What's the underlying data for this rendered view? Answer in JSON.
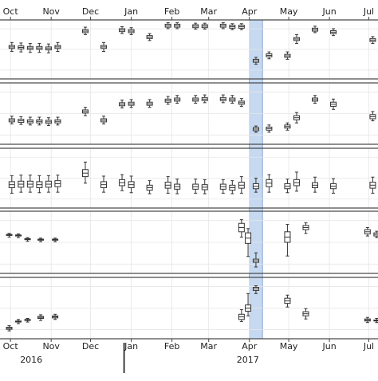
{
  "chart_data": {
    "type": "box",
    "x_axis": {
      "month_ticks": [
        "Oct",
        "Nov",
        "Dec",
        "Jan",
        "Feb",
        "Mar",
        "Apr",
        "May",
        "Jun",
        "Jul"
      ],
      "month_tick_dates": [
        "2016-10-01",
        "2016-11-01",
        "2016-12-01",
        "2017-01-01",
        "2017-02-01",
        "2017-03-01",
        "2017-04-01",
        "2017-05-01",
        "2017-06-01",
        "2017-07-01"
      ],
      "year_labels": [
        "2016",
        "2017"
      ],
      "year_label_dates": [
        "2016-11-01",
        "2017-04-15"
      ],
      "year_boundary_date": "2017-01-01",
      "range": [
        "2016-09-23",
        "2017-07-08"
      ]
    },
    "highlight_band": {
      "start": "2017-04-01",
      "end": "2017-04-11",
      "color": "#c6d9f1",
      "edge_color": "#6f94c8"
    },
    "grid": true,
    "colors": {
      "box_stroke": "#333333",
      "box_fill": "#ffffff",
      "panel_border": "#444444",
      "grid": "#e6e6e6"
    },
    "panels": [
      {
        "ylim": [
          0,
          100
        ],
        "boxes": [
          {
            "x": "2016-10-02",
            "whislo": 46,
            "q1": 52,
            "med": 55,
            "q3": 58,
            "whishi": 64
          },
          {
            "x": "2016-10-09",
            "whislo": 45,
            "q1": 51,
            "med": 54,
            "q3": 57,
            "whishi": 63
          },
          {
            "x": "2016-10-16",
            "whislo": 44,
            "q1": 50,
            "med": 53,
            "q3": 56,
            "whishi": 62
          },
          {
            "x": "2016-10-23",
            "whislo": 44,
            "q1": 50,
            "med": 53,
            "q3": 56,
            "whishi": 62
          },
          {
            "x": "2016-10-30",
            "whislo": 43,
            "q1": 49,
            "med": 52,
            "q3": 55,
            "whishi": 61
          },
          {
            "x": "2016-11-06",
            "whislo": 46,
            "q1": 52,
            "med": 55,
            "q3": 58,
            "whishi": 64
          },
          {
            "x": "2016-11-27",
            "whislo": 80,
            "q1": 84,
            "med": 87,
            "q3": 90,
            "whishi": 95
          },
          {
            "x": "2016-12-11",
            "whislo": 46,
            "q1": 52,
            "med": 55,
            "q3": 58,
            "whishi": 64
          },
          {
            "x": "2016-12-25",
            "whislo": 82,
            "q1": 86,
            "med": 89,
            "q3": 92,
            "whishi": 96
          },
          {
            "x": "2017-01-01",
            "whislo": 80,
            "q1": 84,
            "med": 87,
            "q3": 90,
            "whishi": 94
          },
          {
            "x": "2017-01-15",
            "whislo": 68,
            "q1": 72,
            "med": 75,
            "q3": 78,
            "whishi": 82
          },
          {
            "x": "2017-01-29",
            "whislo": 92,
            "q1": 95,
            "med": 98,
            "q3": 101,
            "whishi": 104
          },
          {
            "x": "2017-02-05",
            "whislo": 92,
            "q1": 95,
            "med": 98,
            "q3": 101,
            "whishi": 104
          },
          {
            "x": "2017-02-19",
            "whislo": 91,
            "q1": 94,
            "med": 97,
            "q3": 100,
            "whishi": 103
          },
          {
            "x": "2017-02-26",
            "whislo": 91,
            "q1": 94,
            "med": 97,
            "q3": 100,
            "whishi": 103
          },
          {
            "x": "2017-03-12",
            "whislo": 92,
            "q1": 95,
            "med": 98,
            "q3": 101,
            "whishi": 104
          },
          {
            "x": "2017-03-19",
            "whislo": 90,
            "q1": 93,
            "med": 96,
            "q3": 99,
            "whishi": 102
          },
          {
            "x": "2017-03-26",
            "whislo": 90,
            "q1": 93,
            "med": 96,
            "q3": 99,
            "whishi": 102
          },
          {
            "x": "2017-04-06",
            "whislo": 20,
            "q1": 24,
            "med": 27,
            "q3": 30,
            "whishi": 34
          },
          {
            "x": "2017-04-16",
            "whislo": 31,
            "q1": 35,
            "med": 38,
            "q3": 41,
            "whishi": 45
          },
          {
            "x": "2017-04-30",
            "whislo": 30,
            "q1": 34,
            "med": 37,
            "q3": 40,
            "whishi": 45
          },
          {
            "x": "2017-05-07",
            "whislo": 62,
            "q1": 68,
            "med": 71,
            "q3": 74,
            "whishi": 80
          },
          {
            "x": "2017-05-21",
            "whislo": 84,
            "q1": 87,
            "med": 90,
            "q3": 93,
            "whishi": 97
          },
          {
            "x": "2017-06-04",
            "whislo": 78,
            "q1": 82,
            "med": 85,
            "q3": 88,
            "whishi": 92
          },
          {
            "x": "2017-07-04",
            "whislo": 62,
            "q1": 66,
            "med": 69,
            "q3": 72,
            "whishi": 76
          }
        ]
      },
      {
        "ylim": [
          0,
          100
        ],
        "boxes": [
          {
            "x": "2016-10-02",
            "whislo": 30,
            "q1": 34,
            "med": 37,
            "q3": 40,
            "whishi": 45
          },
          {
            "x": "2016-10-09",
            "whislo": 29,
            "q1": 33,
            "med": 36,
            "q3": 39,
            "whishi": 44
          },
          {
            "x": "2016-10-16",
            "whislo": 28,
            "q1": 32,
            "med": 35,
            "q3": 38,
            "whishi": 43
          },
          {
            "x": "2016-10-23",
            "whislo": 28,
            "q1": 32,
            "med": 35,
            "q3": 38,
            "whishi": 43
          },
          {
            "x": "2016-10-30",
            "whislo": 27,
            "q1": 31,
            "med": 34,
            "q3": 37,
            "whishi": 42
          },
          {
            "x": "2016-11-06",
            "whislo": 28,
            "q1": 32,
            "med": 35,
            "q3": 38,
            "whishi": 43
          },
          {
            "x": "2016-11-27",
            "whislo": 46,
            "q1": 51,
            "med": 54,
            "q3": 57,
            "whishi": 62
          },
          {
            "x": "2016-12-11",
            "whislo": 30,
            "q1": 34,
            "med": 37,
            "q3": 40,
            "whishi": 45
          },
          {
            "x": "2016-12-25",
            "whislo": 61,
            "q1": 65,
            "med": 68,
            "q3": 71,
            "whishi": 76
          },
          {
            "x": "2017-01-01",
            "whislo": 62,
            "q1": 66,
            "med": 69,
            "q3": 72,
            "whishi": 77
          },
          {
            "x": "2017-01-15",
            "whislo": 62,
            "q1": 66,
            "med": 69,
            "q3": 72,
            "whishi": 77
          },
          {
            "x": "2017-01-29",
            "whislo": 68,
            "q1": 72,
            "med": 75,
            "q3": 78,
            "whishi": 83
          },
          {
            "x": "2017-02-05",
            "whislo": 70,
            "q1": 74,
            "med": 77,
            "q3": 80,
            "whishi": 85
          },
          {
            "x": "2017-02-19",
            "whislo": 70,
            "q1": 74,
            "med": 77,
            "q3": 80,
            "whishi": 85
          },
          {
            "x": "2017-02-26",
            "whislo": 71,
            "q1": 75,
            "med": 78,
            "q3": 81,
            "whishi": 86
          },
          {
            "x": "2017-03-12",
            "whislo": 71,
            "q1": 75,
            "med": 78,
            "q3": 81,
            "whishi": 86
          },
          {
            "x": "2017-03-19",
            "whislo": 70,
            "q1": 74,
            "med": 77,
            "q3": 80,
            "whishi": 85
          },
          {
            "x": "2017-03-26",
            "whislo": 64,
            "q1": 68,
            "med": 71,
            "q3": 74,
            "whishi": 79
          },
          {
            "x": "2017-04-06",
            "whislo": 14,
            "q1": 17,
            "med": 20,
            "q3": 23,
            "whishi": 26
          },
          {
            "x": "2017-04-16",
            "whislo": 14,
            "q1": 18,
            "med": 21,
            "q3": 24,
            "whishi": 28
          },
          {
            "x": "2017-04-30",
            "whislo": 18,
            "q1": 22,
            "med": 25,
            "q3": 28,
            "whishi": 32
          },
          {
            "x": "2017-05-07",
            "whislo": 32,
            "q1": 38,
            "med": 42,
            "q3": 46,
            "whishi": 52
          },
          {
            "x": "2017-05-21",
            "whislo": 70,
            "q1": 74,
            "med": 77,
            "q3": 80,
            "whishi": 85
          },
          {
            "x": "2017-06-04",
            "whislo": 58,
            "q1": 64,
            "med": 68,
            "q3": 72,
            "whishi": 78
          },
          {
            "x": "2017-07-04",
            "whislo": 36,
            "q1": 40,
            "med": 44,
            "q3": 48,
            "whishi": 54
          }
        ]
      },
      {
        "ylim": [
          0,
          100
        ],
        "boxes": [
          {
            "x": "2016-10-02",
            "whislo": 20,
            "q1": 31,
            "med": 37,
            "q3": 43,
            "whishi": 55
          },
          {
            "x": "2016-10-09",
            "whislo": 22,
            "q1": 32,
            "med": 38,
            "q3": 44,
            "whishi": 56
          },
          {
            "x": "2016-10-16",
            "whislo": 22,
            "q1": 32,
            "med": 38,
            "q3": 44,
            "whishi": 56
          },
          {
            "x": "2016-10-23",
            "whislo": 21,
            "q1": 31,
            "med": 37,
            "q3": 43,
            "whishi": 55
          },
          {
            "x": "2016-10-30",
            "whislo": 22,
            "q1": 32,
            "med": 38,
            "q3": 44,
            "whishi": 55
          },
          {
            "x": "2016-11-06",
            "whislo": 22,
            "q1": 33,
            "med": 39,
            "q3": 45,
            "whishi": 56
          },
          {
            "x": "2016-11-27",
            "whislo": 40,
            "q1": 53,
            "med": 60,
            "q3": 67,
            "whishi": 82
          },
          {
            "x": "2016-12-11",
            "whislo": 22,
            "q1": 31,
            "med": 37,
            "q3": 43,
            "whishi": 54
          },
          {
            "x": "2016-12-25",
            "whislo": 25,
            "q1": 35,
            "med": 41,
            "q3": 47,
            "whishi": 57
          },
          {
            "x": "2017-01-01",
            "whislo": 21,
            "q1": 31,
            "med": 37,
            "q3": 43,
            "whishi": 54
          },
          {
            "x": "2017-01-15",
            "whislo": 19,
            "q1": 26,
            "med": 31,
            "q3": 36,
            "whishi": 45
          },
          {
            "x": "2017-01-29",
            "whislo": 20,
            "q1": 30,
            "med": 36,
            "q3": 42,
            "whishi": 53
          },
          {
            "x": "2017-02-05",
            "whislo": 19,
            "q1": 28,
            "med": 33,
            "q3": 38,
            "whishi": 48
          },
          {
            "x": "2017-02-19",
            "whislo": 20,
            "q1": 28,
            "med": 33,
            "q3": 38,
            "whishi": 48
          },
          {
            "x": "2017-02-26",
            "whislo": 19,
            "q1": 27,
            "med": 32,
            "q3": 37,
            "whishi": 47
          },
          {
            "x": "2017-03-12",
            "whislo": 20,
            "q1": 28,
            "med": 33,
            "q3": 38,
            "whishi": 47
          },
          {
            "x": "2017-03-19",
            "whislo": 19,
            "q1": 26,
            "med": 31,
            "q3": 36,
            "whishi": 45
          },
          {
            "x": "2017-03-26",
            "whislo": 20,
            "q1": 30,
            "med": 36,
            "q3": 42,
            "whishi": 53
          },
          {
            "x": "2017-04-06",
            "whislo": 22,
            "q1": 29,
            "med": 34,
            "q3": 39,
            "whishi": 50
          },
          {
            "x": "2017-04-16",
            "whislo": 22,
            "q1": 33,
            "med": 40,
            "q3": 47,
            "whishi": 57
          },
          {
            "x": "2017-04-30",
            "whislo": 21,
            "q1": 29,
            "med": 34,
            "q3": 39,
            "whishi": 48
          },
          {
            "x": "2017-05-07",
            "whislo": 24,
            "q1": 35,
            "med": 41,
            "q3": 47,
            "whishi": 62
          },
          {
            "x": "2017-05-21",
            "whislo": 22,
            "q1": 31,
            "med": 36,
            "q3": 41,
            "whishi": 52
          },
          {
            "x": "2017-06-04",
            "whislo": 20,
            "q1": 29,
            "med": 34,
            "q3": 39,
            "whishi": 49
          },
          {
            "x": "2017-07-04",
            "whislo": 20,
            "q1": 30,
            "med": 36,
            "q3": 42,
            "whishi": 52
          }
        ]
      },
      {
        "ylim": [
          0,
          100
        ],
        "boxes": [
          {
            "x": "2016-09-30",
            "whislo": 60,
            "q1": 63,
            "med": 64,
            "q3": 65,
            "whishi": 67
          },
          {
            "x": "2016-10-07",
            "whislo": 59,
            "q1": 62,
            "med": 63,
            "q3": 64,
            "whishi": 66
          },
          {
            "x": "2016-10-14",
            "whislo": 52,
            "q1": 55,
            "med": 56,
            "q3": 57,
            "whishi": 59
          },
          {
            "x": "2016-10-24",
            "whislo": 51,
            "q1": 54,
            "med": 55,
            "q3": 56,
            "whishi": 58
          },
          {
            "x": "2016-11-04",
            "whislo": 51,
            "q1": 54,
            "med": 55,
            "q3": 56,
            "whishi": 58
          },
          {
            "x": "2017-03-26",
            "whislo": 60,
            "q1": 70,
            "med": 78,
            "q3": 86,
            "whishi": 93
          },
          {
            "x": "2017-03-31",
            "whislo": 23,
            "q1": 48,
            "med": 58,
            "q3": 68,
            "whishi": 76
          },
          {
            "x": "2017-04-06",
            "whislo": 3,
            "q1": 12,
            "med": 15,
            "q3": 18,
            "whishi": 30
          },
          {
            "x": "2017-04-30",
            "whislo": 24,
            "q1": 50,
            "med": 60,
            "q3": 70,
            "whishi": 84
          },
          {
            "x": "2017-05-14",
            "whislo": 67,
            "q1": 74,
            "med": 78,
            "q3": 82,
            "whishi": 87
          },
          {
            "x": "2017-06-30",
            "whislo": 62,
            "q1": 66,
            "med": 70,
            "q3": 74,
            "whishi": 78
          },
          {
            "x": "2017-07-07",
            "whislo": 59,
            "q1": 62,
            "med": 65,
            "q3": 68,
            "whishi": 71
          }
        ]
      },
      {
        "ylim": [
          0,
          100
        ],
        "boxes": [
          {
            "x": "2016-09-30",
            "whislo": 6,
            "q1": 9,
            "med": 11,
            "q3": 13,
            "whishi": 16
          },
          {
            "x": "2016-10-07",
            "whislo": 20,
            "q1": 23,
            "med": 24,
            "q3": 25,
            "whishi": 28
          },
          {
            "x": "2016-10-14",
            "whislo": 23,
            "q1": 26,
            "med": 27,
            "q3": 28,
            "whishi": 30
          },
          {
            "x": "2016-10-24",
            "whislo": 26,
            "q1": 30,
            "med": 32,
            "q3": 34,
            "whishi": 37
          },
          {
            "x": "2016-11-04",
            "whislo": 28,
            "q1": 31,
            "med": 33,
            "q3": 35,
            "whishi": 38
          },
          {
            "x": "2017-03-26",
            "whislo": 24,
            "q1": 28,
            "med": 33,
            "q3": 38,
            "whishi": 47
          },
          {
            "x": "2017-03-31",
            "whislo": 35,
            "q1": 44,
            "med": 50,
            "q3": 56,
            "whishi": 78
          },
          {
            "x": "2017-04-06",
            "whislo": 78,
            "q1": 84,
            "med": 87,
            "q3": 90,
            "whishi": 93
          },
          {
            "x": "2017-04-30",
            "whislo": 52,
            "q1": 59,
            "med": 64,
            "q3": 69,
            "whishi": 75
          },
          {
            "x": "2017-05-14",
            "whislo": 29,
            "q1": 35,
            "med": 39,
            "q3": 43,
            "whishi": 49
          },
          {
            "x": "2017-06-30",
            "whislo": 22,
            "q1": 25,
            "med": 27,
            "q3": 29,
            "whishi": 32
          },
          {
            "x": "2017-07-07",
            "whislo": 22,
            "q1": 25,
            "med": 26,
            "q3": 27,
            "whishi": 30
          }
        ]
      }
    ]
  }
}
